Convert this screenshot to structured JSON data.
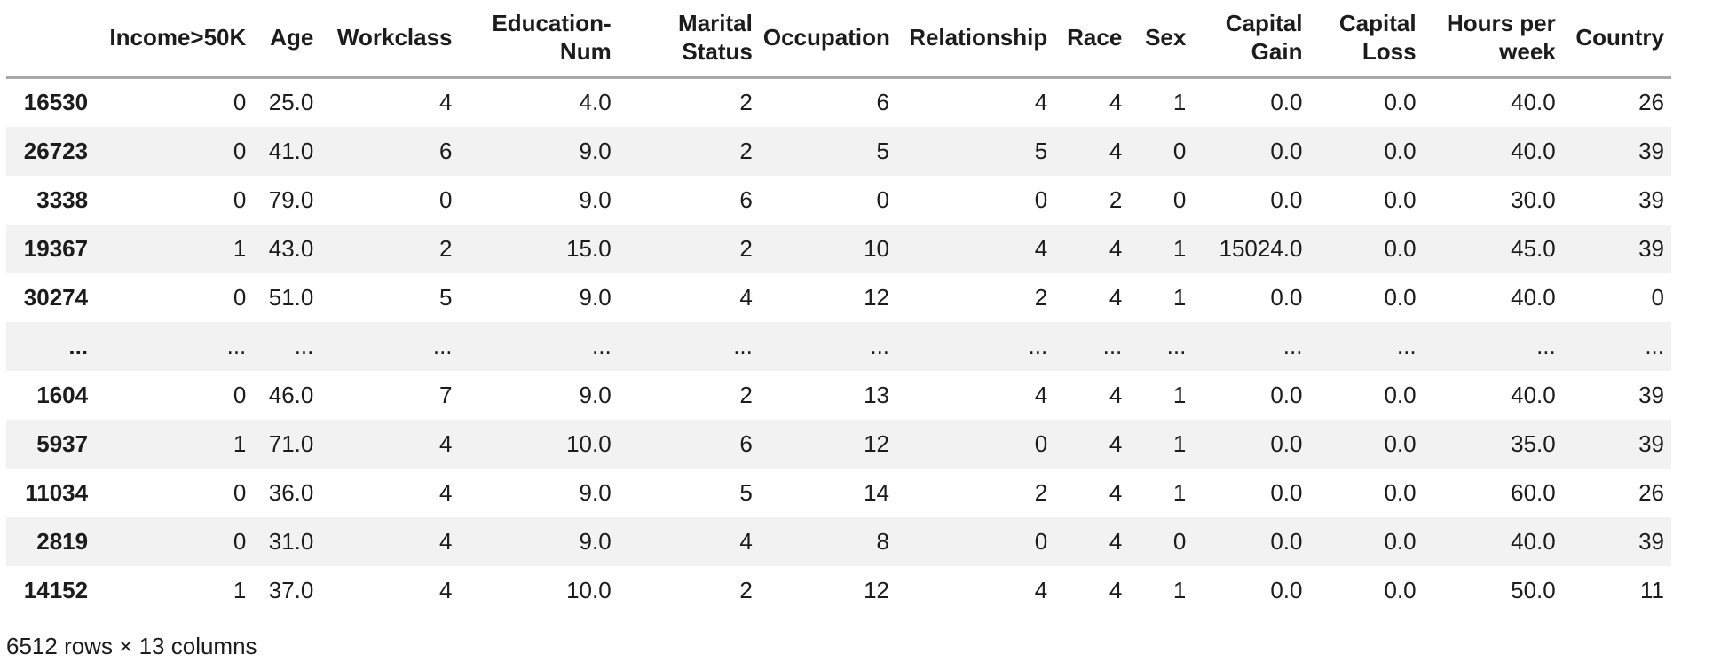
{
  "table": {
    "index_header": "",
    "columns": [
      "Income>50K",
      "Age",
      "Workclass",
      "Education-Num",
      "Marital Status",
      "Occupation",
      "Relationship",
      "Race",
      "Sex",
      "Capital Gain",
      "Capital Loss",
      "Hours per week",
      "Country"
    ],
    "rows": [
      {
        "index": "16530",
        "values": [
          "0",
          "25.0",
          "4",
          "4.0",
          "2",
          "6",
          "4",
          "4",
          "1",
          "0.0",
          "0.0",
          "40.0",
          "26"
        ]
      },
      {
        "index": "26723",
        "values": [
          "0",
          "41.0",
          "6",
          "9.0",
          "2",
          "5",
          "5",
          "4",
          "0",
          "0.0",
          "0.0",
          "40.0",
          "39"
        ]
      },
      {
        "index": "3338",
        "values": [
          "0",
          "79.0",
          "0",
          "9.0",
          "6",
          "0",
          "0",
          "2",
          "0",
          "0.0",
          "0.0",
          "30.0",
          "39"
        ]
      },
      {
        "index": "19367",
        "values": [
          "1",
          "43.0",
          "2",
          "15.0",
          "2",
          "10",
          "4",
          "4",
          "1",
          "15024.0",
          "0.0",
          "45.0",
          "39"
        ]
      },
      {
        "index": "30274",
        "values": [
          "0",
          "51.0",
          "5",
          "9.0",
          "4",
          "12",
          "2",
          "4",
          "1",
          "0.0",
          "0.0",
          "40.0",
          "0"
        ]
      },
      {
        "index": "...",
        "values": [
          "...",
          "...",
          "...",
          "...",
          "...",
          "...",
          "...",
          "...",
          "...",
          "...",
          "...",
          "...",
          "..."
        ]
      },
      {
        "index": "1604",
        "values": [
          "0",
          "46.0",
          "7",
          "9.0",
          "2",
          "13",
          "4",
          "4",
          "1",
          "0.0",
          "0.0",
          "40.0",
          "39"
        ]
      },
      {
        "index": "5937",
        "values": [
          "1",
          "71.0",
          "4",
          "10.0",
          "6",
          "12",
          "0",
          "4",
          "1",
          "0.0",
          "0.0",
          "35.0",
          "39"
        ]
      },
      {
        "index": "11034",
        "values": [
          "0",
          "36.0",
          "4",
          "9.0",
          "5",
          "14",
          "2",
          "4",
          "1",
          "0.0",
          "0.0",
          "60.0",
          "26"
        ]
      },
      {
        "index": "2819",
        "values": [
          "0",
          "31.0",
          "4",
          "9.0",
          "4",
          "8",
          "0",
          "4",
          "0",
          "0.0",
          "0.0",
          "40.0",
          "39"
        ]
      },
      {
        "index": "14152",
        "values": [
          "1",
          "37.0",
          "4",
          "10.0",
          "2",
          "12",
          "4",
          "4",
          "1",
          "0.0",
          "0.0",
          "50.0",
          "11"
        ]
      }
    ],
    "footer": "6512 rows × 13 columns"
  },
  "colors": {
    "stripe_background": "#f2f2f2",
    "header_rule": "#a9a9a9",
    "text": "#1c1c1c",
    "background": "#ffffff"
  }
}
